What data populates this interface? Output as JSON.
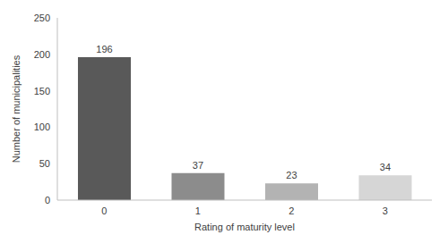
{
  "chart_data": {
    "type": "bar",
    "categories": [
      "0",
      "1",
      "2",
      "3"
    ],
    "values": [
      196,
      37,
      23,
      34
    ],
    "colors": [
      "#595959",
      "#8c8c8c",
      "#b3b3b3",
      "#d6d6d6"
    ],
    "x_label": "Rating of maturity level",
    "y_label": "Number of municipalities",
    "ylim": [
      0,
      250
    ],
    "yticks": [
      0,
      50,
      100,
      150,
      200,
      250
    ],
    "grid": false,
    "data_labels": true
  }
}
